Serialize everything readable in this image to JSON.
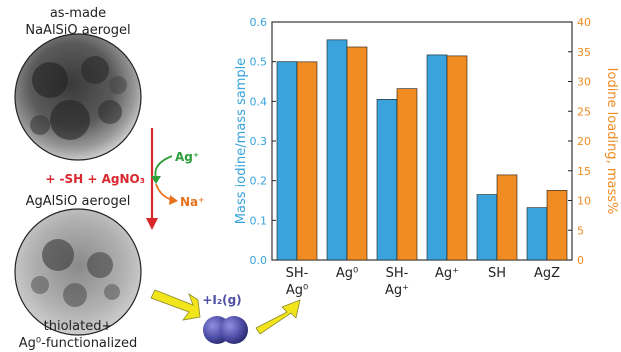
{
  "diagram": {
    "top_label_1": "as-made",
    "top_label_2": "NaAlSiO aerogel",
    "mid_label": "AgAlSiO aerogel",
    "bottom_label_1": "thiolated+",
    "bottom_label_2": "Ag⁰-functionalized",
    "reagent_label": "+ -SH + AgNO₃",
    "ag_ion_label": "Ag⁺",
    "na_ion_label": "Na⁺",
    "iodine_label": "+I₂(g)",
    "colors": {
      "red_arrow": "#d9272e",
      "ag_green": "#2e9e3a",
      "na_orange": "#e8731e",
      "yellow_arrow": "#f2e51c",
      "iodine_purple": "#4f4fa8"
    }
  },
  "chart_data": {
    "type": "bar",
    "categories": [
      "SH-Ag⁰",
      "Ag⁰",
      "SH-Ag⁺",
      "Ag⁺",
      "SH",
      "AgZ"
    ],
    "category_labels": [
      [
        "SH-",
        "Ag⁰"
      ],
      [
        "Ag⁰"
      ],
      [
        "SH-",
        "Ag⁺"
      ],
      [
        "Ag⁺"
      ],
      [
        "SH"
      ],
      [
        "AgZ"
      ]
    ],
    "series": [
      {
        "axis": "left",
        "color": "#3aa3dc",
        "values": [
          0.5,
          0.555,
          0.405,
          0.517,
          0.165,
          0.132
        ]
      },
      {
        "axis": "right",
        "color": "#f08c22",
        "values": [
          33.3,
          35.8,
          28.8,
          34.3,
          14.3,
          11.7
        ]
      }
    ],
    "ylabel_left": "Mass iodine/mass sample",
    "ylabel_right": "Iodine loading, mass%",
    "ylim_left": [
      0,
      0.6
    ],
    "ylim_right": [
      0,
      40
    ],
    "yticks_left": [
      "0.0",
      "0.1",
      "0.2",
      "0.3",
      "0.4",
      "0.5",
      "0.6"
    ],
    "yticks_right": [
      "0",
      "5",
      "10",
      "15",
      "20",
      "25",
      "30",
      "35",
      "40"
    ],
    "left_axis_color": "#3aa3dc",
    "right_axis_color": "#f08c22",
    "grid": false
  }
}
